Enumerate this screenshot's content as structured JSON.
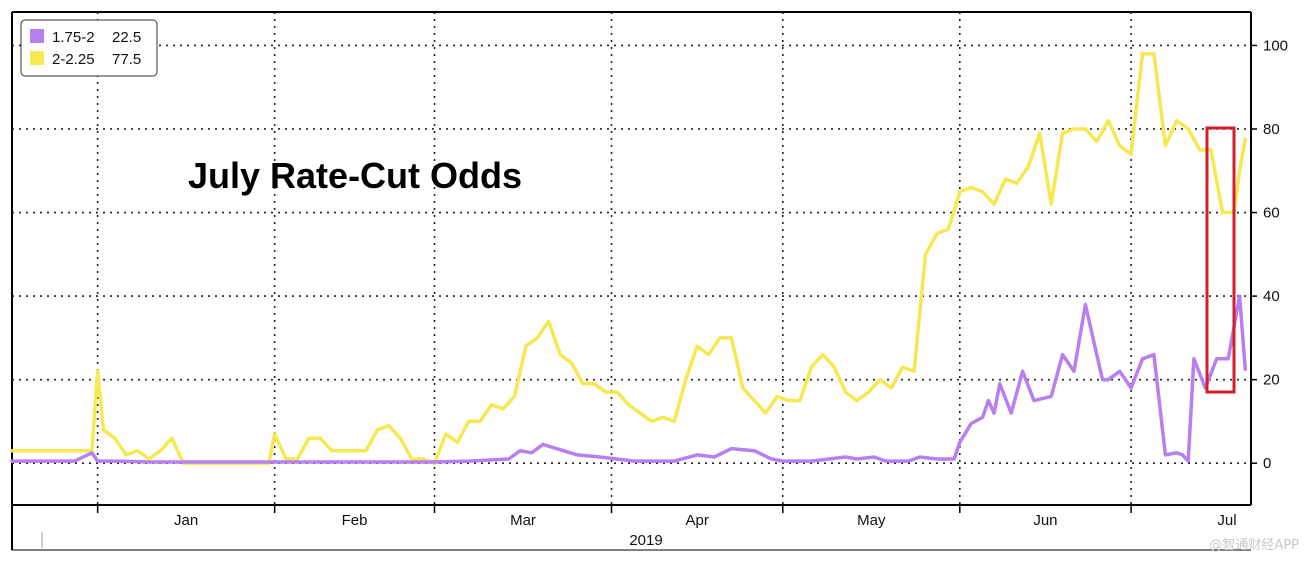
{
  "watermark": "@智通财经APP",
  "colors": {
    "series_1": "#b77fef",
    "series_2": "#f6e850",
    "highlight": "#d21f2b"
  },
  "chart_data": {
    "type": "line",
    "title": "July Rate-Cut Odds",
    "year_label": "2019",
    "x_tick_labels": [
      "Jan",
      "Feb",
      "Mar",
      "Apr",
      "May",
      "Jun",
      "Jul"
    ],
    "y_tick_labels": [
      "0",
      "20",
      "40",
      "60",
      "80",
      "100"
    ],
    "y_ticks": [
      0,
      20,
      40,
      60,
      80,
      100
    ],
    "ylim": [
      -10,
      108
    ],
    "xlim": [
      "2018-12-17",
      "2019-07-22"
    ],
    "grid": true,
    "legend_position": "top-left",
    "legend": [
      {
        "name": "1.75-2",
        "last_value": "22.5"
      },
      {
        "name": "2-2.25",
        "last_value": "77.5"
      }
    ],
    "series": [
      {
        "name": "1.75-2",
        "x": [
          "2018-12-17",
          "2018-12-28",
          "2018-12-31",
          "2019-01-01",
          "2019-01-02",
          "2019-01-04",
          "2019-01-10",
          "2019-01-20",
          "2019-02-01",
          "2019-02-15",
          "2019-03-01",
          "2019-03-07",
          "2019-03-14",
          "2019-03-16",
          "2019-03-18",
          "2019-03-20",
          "2019-03-26",
          "2019-03-30",
          "2019-04-05",
          "2019-04-12",
          "2019-04-16",
          "2019-04-19",
          "2019-04-22",
          "2019-04-26",
          "2019-04-29",
          "2019-05-01",
          "2019-05-06",
          "2019-05-12",
          "2019-05-14",
          "2019-05-17",
          "2019-05-19",
          "2019-05-23",
          "2019-05-25",
          "2019-05-28",
          "2019-05-31",
          "2019-06-01",
          "2019-06-03",
          "2019-06-05",
          "2019-06-06",
          "2019-06-07",
          "2019-06-08",
          "2019-06-10",
          "2019-06-12",
          "2019-06-14",
          "2019-06-17",
          "2019-06-19",
          "2019-06-21",
          "2019-06-23",
          "2019-06-26",
          "2019-06-27",
          "2019-06-29",
          "2019-07-01",
          "2019-07-03",
          "2019-07-05",
          "2019-07-07",
          "2019-07-09",
          "2019-07-10",
          "2019-07-11",
          "2019-07-12",
          "2019-07-14",
          "2019-07-16",
          "2019-07-18",
          "2019-07-20",
          "2019-07-21"
        ],
        "values": [
          0.5,
          0.5,
          2.5,
          0.5,
          0.5,
          0.5,
          0.3,
          0.3,
          0.3,
          0.3,
          0.3,
          0.5,
          1,
          3,
          2.5,
          4.5,
          2,
          1.5,
          0.5,
          0.5,
          2,
          1.5,
          3.5,
          3,
          1,
          0.5,
          0.5,
          1.5,
          1,
          1.5,
          0.5,
          0.5,
          1.5,
          1,
          1,
          5,
          9.5,
          11,
          15,
          12,
          19,
          12,
          22,
          15,
          16,
          26,
          22,
          38,
          20,
          20,
          22,
          18,
          25,
          26,
          2,
          2.5,
          2,
          0.5,
          25,
          18,
          25,
          25,
          40,
          22.5
        ]
      },
      {
        "name": "2-2.25",
        "x": [
          "2018-12-17",
          "2018-12-25",
          "2018-12-28",
          "2018-12-31",
          "2019-01-01",
          "2019-01-02",
          "2019-01-04",
          "2019-01-06",
          "2019-01-08",
          "2019-01-10",
          "2019-01-12",
          "2019-01-14",
          "2019-01-16",
          "2019-01-18",
          "2019-01-20",
          "2019-01-25",
          "2019-01-31",
          "2019-02-01",
          "2019-02-03",
          "2019-02-05",
          "2019-02-07",
          "2019-02-09",
          "2019-02-11",
          "2019-02-13",
          "2019-02-15",
          "2019-02-17",
          "2019-02-19",
          "2019-02-21",
          "2019-02-23",
          "2019-02-25",
          "2019-02-27",
          "2019-03-01",
          "2019-03-03",
          "2019-03-05",
          "2019-03-07",
          "2019-03-09",
          "2019-03-11",
          "2019-03-13",
          "2019-03-15",
          "2019-03-17",
          "2019-03-19",
          "2019-03-21",
          "2019-03-23",
          "2019-03-25",
          "2019-03-27",
          "2019-03-29",
          "2019-03-31",
          "2019-04-02",
          "2019-04-04",
          "2019-04-06",
          "2019-04-08",
          "2019-04-10",
          "2019-04-12",
          "2019-04-14",
          "2019-04-16",
          "2019-04-18",
          "2019-04-20",
          "2019-04-22",
          "2019-04-24",
          "2019-04-26",
          "2019-04-28",
          "2019-04-30",
          "2019-05-02",
          "2019-05-04",
          "2019-05-06",
          "2019-05-08",
          "2019-05-10",
          "2019-05-12",
          "2019-05-14",
          "2019-05-16",
          "2019-05-18",
          "2019-05-20",
          "2019-05-22",
          "2019-05-24",
          "2019-05-26",
          "2019-05-28",
          "2019-05-30",
          "2019-06-01",
          "2019-06-03",
          "2019-06-05",
          "2019-06-07",
          "2019-06-09",
          "2019-06-11",
          "2019-06-13",
          "2019-06-15",
          "2019-06-17",
          "2019-06-19",
          "2019-06-21",
          "2019-06-23",
          "2019-06-25",
          "2019-06-27",
          "2019-06-29",
          "2019-07-01",
          "2019-07-03",
          "2019-07-05",
          "2019-07-07",
          "2019-07-09",
          "2019-07-11",
          "2019-07-13",
          "2019-07-15",
          "2019-07-17",
          "2019-07-19",
          "2019-07-20",
          "2019-07-21"
        ],
        "values": [
          3,
          3,
          3,
          3,
          22,
          8,
          6,
          2,
          3,
          1,
          3,
          6,
          0,
          0,
          0,
          0,
          0,
          7,
          1,
          1,
          6,
          6,
          3,
          3,
          3,
          3,
          8,
          9,
          6,
          1,
          1,
          0,
          7,
          5,
          10,
          10,
          14,
          13,
          16,
          28,
          30,
          34,
          26,
          24,
          19,
          19,
          17,
          17,
          14,
          12,
          10,
          11,
          10,
          20,
          28,
          26,
          30,
          30,
          18,
          15,
          12,
          16,
          15,
          15,
          23,
          26,
          23,
          17,
          15,
          17,
          20,
          18,
          23,
          22,
          50,
          55,
          56,
          65,
          66,
          65,
          62,
          68,
          67,
          71,
          79,
          62,
          79,
          80,
          80,
          77,
          82,
          76,
          74,
          98,
          98,
          76,
          82,
          80,
          75,
          75,
          60,
          60,
          70,
          77.5
        ]
      }
    ]
  }
}
